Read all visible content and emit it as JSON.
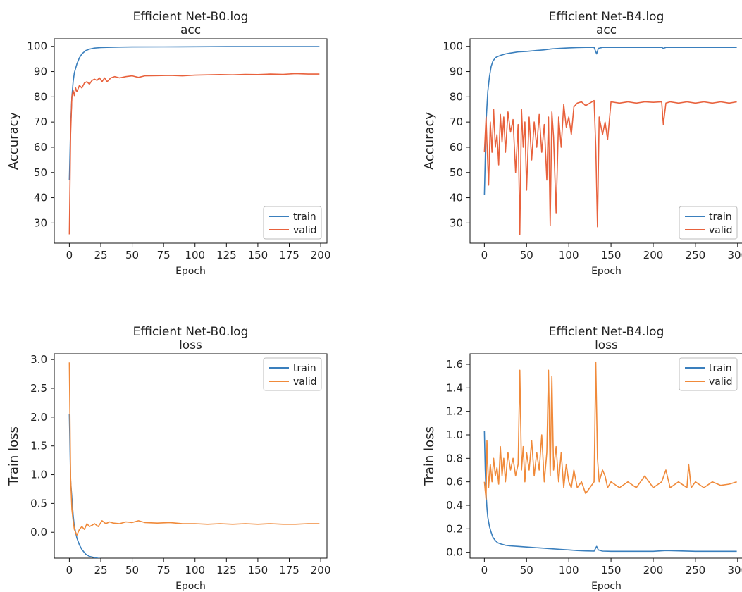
{
  "chart_data": [
    {
      "type": "line",
      "title": "Efficient Net-B0.log",
      "subtitle": "acc",
      "xlabel": "Epoch",
      "ylabel": "Accuracy",
      "xlim": [
        -12,
        205
      ],
      "ylim": [
        22,
        103
      ],
      "xticks": [
        0,
        25,
        50,
        75,
        100,
        125,
        150,
        175,
        200
      ],
      "yticks": [
        30,
        40,
        50,
        60,
        70,
        80,
        90,
        100
      ],
      "ytick_labels": [
        "30",
        "40",
        "50",
        "60",
        "70",
        "80",
        "90",
        "100"
      ],
      "legend": "bottom-right",
      "series": [
        {
          "name": "train",
          "color": "#3a7fbd",
          "x": [
            0,
            1,
            2,
            3,
            4,
            6,
            8,
            10,
            13,
            16,
            20,
            25,
            30,
            40,
            50,
            75,
            100,
            125,
            150,
            175,
            199
          ],
          "y": [
            47,
            68,
            80,
            86,
            89.5,
            93,
            95.5,
            97,
            98.3,
            98.9,
            99.3,
            99.5,
            99.6,
            99.7,
            99.75,
            99.8,
            99.85,
            99.9,
            99.9,
            99.9,
            99.9
          ]
        },
        {
          "name": "valid",
          "color": "#e8613c",
          "x": [
            0,
            1,
            2,
            3,
            4,
            5,
            6,
            8,
            10,
            12,
            14,
            16,
            18,
            20,
            22,
            24,
            26,
            28,
            30,
            33,
            36,
            40,
            45,
            50,
            55,
            60,
            70,
            80,
            90,
            100,
            110,
            120,
            130,
            140,
            150,
            160,
            170,
            180,
            190,
            199
          ],
          "y": [
            25.5,
            65,
            80,
            82.5,
            80.5,
            83.5,
            82,
            84.5,
            83.5,
            85.5,
            86,
            85,
            86.5,
            87,
            86.5,
            87.5,
            86,
            87.5,
            86,
            87.5,
            88,
            87.5,
            88,
            88.3,
            87.7,
            88.3,
            88.4,
            88.5,
            88.3,
            88.6,
            88.7,
            88.8,
            88.7,
            88.9,
            88.8,
            89,
            88.9,
            89.2,
            89,
            89
          ]
        }
      ]
    },
    {
      "type": "line",
      "title": "Efficient Net-B4.log",
      "subtitle": "acc",
      "xlabel": "Epoch",
      "ylabel": "Accuracy",
      "xlim": [
        -17,
        306
      ],
      "ylim": [
        22,
        103
      ],
      "xticks": [
        0,
        50,
        100,
        150,
        200,
        250,
        300
      ],
      "yticks": [
        30,
        40,
        50,
        60,
        70,
        80,
        90,
        100
      ],
      "ytick_labels": [
        "30",
        "40",
        "50",
        "60",
        "70",
        "80",
        "90",
        "100"
      ],
      "legend": "bottom-right",
      "series": [
        {
          "name": "train",
          "color": "#3a7fbd",
          "x": [
            0,
            2,
            4,
            6,
            8,
            10,
            13,
            16,
            20,
            25,
            30,
            40,
            50,
            60,
            70,
            80,
            90,
            100,
            110,
            120,
            130,
            133,
            135,
            140,
            150,
            170,
            200,
            210,
            212,
            215,
            250,
            299
          ],
          "y": [
            41,
            70,
            82,
            88,
            92,
            94,
            95.5,
            96,
            96.5,
            97,
            97.3,
            97.8,
            98,
            98.3,
            98.6,
            99,
            99.2,
            99.4,
            99.5,
            99.6,
            99.6,
            97,
            99.2,
            99.6,
            99.6,
            99.6,
            99.6,
            99.6,
            99.2,
            99.6,
            99.6,
            99.6
          ]
        },
        {
          "name": "valid",
          "color": "#e8613c",
          "x": [
            0,
            2,
            3,
            5,
            7,
            9,
            11,
            13,
            15,
            17,
            19,
            21,
            23,
            25,
            28,
            31,
            34,
            37,
            40,
            42,
            44,
            46,
            48,
            50,
            53,
            56,
            59,
            62,
            65,
            68,
            71,
            74,
            76,
            78,
            80,
            82,
            85,
            88,
            91,
            94,
            97,
            100,
            103,
            106,
            110,
            115,
            120,
            125,
            130,
            132,
            134,
            136,
            140,
            143,
            146,
            150,
            160,
            170,
            180,
            190,
            200,
            210,
            212,
            215,
            220,
            230,
            240,
            250,
            260,
            270,
            280,
            290,
            299
          ],
          "y": [
            58,
            72,
            62,
            45,
            70,
            58,
            75,
            60,
            65,
            53,
            73,
            62,
            72,
            58,
            74,
            66,
            71,
            50,
            69,
            25.5,
            75,
            60,
            70,
            43,
            72,
            55,
            70,
            60,
            73,
            58,
            69,
            47,
            72,
            29,
            74,
            64,
            34,
            72,
            60,
            77,
            68,
            72,
            65,
            76,
            77.5,
            78,
            76.5,
            77.5,
            78.5,
            60,
            28.5,
            72,
            65,
            70,
            63,
            78,
            77.5,
            78,
            77.5,
            78,
            77.8,
            78,
            69,
            77.5,
            78,
            77.5,
            78,
            77.5,
            78,
            77.5,
            78,
            77.5,
            78
          ]
        }
      ]
    },
    {
      "type": "line",
      "title": "Efficient Net-B0.log",
      "subtitle": "loss",
      "xlabel": "Epoch",
      "ylabel": "Train loss",
      "xlim": [
        -12,
        205
      ],
      "ylim": [
        -0.45,
        3.1
      ],
      "xticks": [
        0,
        25,
        50,
        75,
        100,
        125,
        150,
        175,
        200
      ],
      "yticks": [
        0.0,
        0.5,
        1.0,
        1.5,
        2.0,
        2.5,
        3.0
      ],
      "ytick_labels": [
        "0.0",
        "0.5",
        "1.0",
        "1.5",
        "2.0",
        "2.5",
        "3.0"
      ],
      "legend": "top-right",
      "series": [
        {
          "name": "train",
          "color": "#3a7fbd",
          "x": [
            0,
            1,
            2,
            3,
            4,
            6,
            8,
            10,
            13,
            16,
            20,
            25,
            30,
            40,
            50,
            75,
            100,
            125,
            150,
            175,
            199
          ],
          "y": [
            2.05,
            0.9,
            0.6,
            0.3,
            0.1,
            -0.1,
            -0.22,
            -0.3,
            -0.38,
            -0.42,
            -0.44,
            -0.46,
            -0.46,
            -0.47,
            -0.47,
            -0.47,
            -0.47,
            -0.47,
            -0.47,
            -0.47,
            -0.47
          ]
        },
        {
          "name": "valid",
          "color": "#f08a3a",
          "x": [
            0,
            1,
            2,
            3,
            4,
            5,
            6,
            7,
            8,
            10,
            12,
            14,
            16,
            18,
            20,
            23,
            26,
            29,
            32,
            35,
            40,
            45,
            50,
            55,
            60,
            70,
            80,
            90,
            100,
            110,
            120,
            130,
            140,
            150,
            160,
            170,
            180,
            190,
            199
          ],
          "y": [
            2.95,
            0.95,
            0.4,
            0.2,
            0.05,
            0.0,
            -0.05,
            0.0,
            0.05,
            0.1,
            0.05,
            0.15,
            0.1,
            0.12,
            0.15,
            0.1,
            0.2,
            0.15,
            0.18,
            0.16,
            0.15,
            0.18,
            0.17,
            0.2,
            0.17,
            0.16,
            0.17,
            0.15,
            0.15,
            0.14,
            0.15,
            0.14,
            0.15,
            0.14,
            0.15,
            0.14,
            0.14,
            0.15,
            0.15
          ]
        }
      ]
    },
    {
      "type": "line",
      "title": "Efficient Net-B4.log",
      "subtitle": "loss",
      "xlabel": "Epoch",
      "ylabel": "Train loss",
      "xlim": [
        -17,
        306
      ],
      "ylim": [
        -0.05,
        1.69
      ],
      "xticks": [
        0,
        50,
        100,
        150,
        200,
        250,
        300
      ],
      "yticks": [
        0.0,
        0.2,
        0.4,
        0.6,
        0.8,
        1.0,
        1.2,
        1.4,
        1.6
      ],
      "ytick_labels": [
        "0.0",
        "0.2",
        "0.4",
        "0.6",
        "0.8",
        "1.0",
        "1.2",
        "1.4",
        "1.6"
      ],
      "legend": "top-right",
      "series": [
        {
          "name": "train",
          "color": "#3a7fbd",
          "x": [
            0,
            1,
            2,
            3,
            4,
            6,
            8,
            10,
            13,
            16,
            20,
            25,
            30,
            40,
            50,
            60,
            70,
            80,
            90,
            100,
            110,
            120,
            130,
            133,
            135,
            140,
            150,
            200,
            215,
            250,
            299
          ],
          "y": [
            1.03,
            0.7,
            0.5,
            0.38,
            0.3,
            0.22,
            0.17,
            0.13,
            0.1,
            0.08,
            0.07,
            0.06,
            0.055,
            0.05,
            0.045,
            0.04,
            0.035,
            0.03,
            0.025,
            0.02,
            0.015,
            0.012,
            0.01,
            0.05,
            0.02,
            0.01,
            0.008,
            0.008,
            0.015,
            0.008,
            0.008
          ]
        },
        {
          "name": "valid",
          "color": "#f08a3a",
          "x": [
            0,
            2,
            3,
            5,
            7,
            9,
            11,
            13,
            15,
            17,
            19,
            21,
            23,
            25,
            28,
            31,
            34,
            37,
            40,
            42,
            44,
            46,
            48,
            50,
            53,
            56,
            59,
            62,
            65,
            68,
            71,
            74,
            76,
            78,
            80,
            82,
            85,
            88,
            91,
            94,
            97,
            100,
            103,
            106,
            110,
            115,
            120,
            125,
            130,
            132,
            134,
            136,
            140,
            143,
            146,
            150,
            160,
            170,
            180,
            190,
            200,
            210,
            215,
            220,
            230,
            240,
            242,
            245,
            250,
            260,
            270,
            280,
            290,
            299
          ],
          "y": [
            0.6,
            0.45,
            0.95,
            0.55,
            0.75,
            0.6,
            0.8,
            0.65,
            0.72,
            0.58,
            0.9,
            0.65,
            0.8,
            0.6,
            0.85,
            0.7,
            0.8,
            0.65,
            0.75,
            1.55,
            0.7,
            0.9,
            0.6,
            0.85,
            0.7,
            0.95,
            0.65,
            0.85,
            0.7,
            1.0,
            0.6,
            0.85,
            1.55,
            0.65,
            1.5,
            0.7,
            0.9,
            0.6,
            0.85,
            0.55,
            0.75,
            0.6,
            0.55,
            0.7,
            0.55,
            0.6,
            0.5,
            0.55,
            0.6,
            1.62,
            0.8,
            0.6,
            0.7,
            0.65,
            0.55,
            0.6,
            0.55,
            0.6,
            0.55,
            0.65,
            0.55,
            0.6,
            0.7,
            0.55,
            0.6,
            0.55,
            0.75,
            0.55,
            0.6,
            0.55,
            0.6,
            0.57,
            0.58,
            0.6
          ]
        }
      ]
    }
  ]
}
